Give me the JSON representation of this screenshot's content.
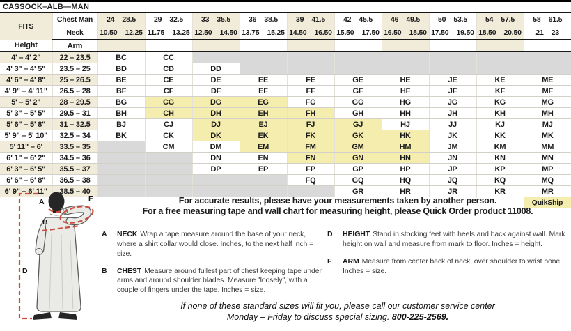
{
  "title": "CASSOCK–ALB—MAN",
  "colors": {
    "cream": "#f1ecd9",
    "quikship_yellow": "#f5edad",
    "empty_gray": "#d9d9d9",
    "measure_line_red": "#cb4b3c"
  },
  "table": {
    "fits_label": "FITS",
    "chest_label": "Chest Man",
    "neck_label": "Neck",
    "height_label": "Height",
    "arm_label": "Arm",
    "quikship_label": "QuikShip",
    "chest_ranges": [
      "24 – 28.5",
      "29 – 32.5",
      "33 – 35.5",
      "36 – 38.5",
      "39 – 41.5",
      "42 – 45.5",
      "46 – 49.5",
      "50 – 53.5",
      "54 – 57.5",
      "58 – 61.5"
    ],
    "neck_ranges": [
      "10.50 – 12.25",
      "11.75 – 13.25",
      "12.50 – 14.50",
      "13.75 – 15.25",
      "14.50 – 16.50",
      "15.50 – 17.50",
      "16.50 – 18.50",
      "17.50 – 19.50",
      "18.50 – 20.50",
      "21 – 23"
    ],
    "quikship_cells": [
      "CG",
      "DG",
      "EG",
      "CH",
      "DH",
      "EH",
      "FH",
      "DJ",
      "EJ",
      "FJ",
      "GJ",
      "DK",
      "EK",
      "FK",
      "GK",
      "HK",
      "EM",
      "FM",
      "GM",
      "HM",
      "FN",
      "GN",
      "HN"
    ],
    "rows": [
      {
        "height": "4' – 4' 2\"",
        "arm": "22 – 23.5",
        "cells": [
          "BC",
          "CC",
          "",
          "",
          "",
          "",
          "",
          "",
          "",
          ""
        ]
      },
      {
        "height": "4' 3\" – 4' 5\"",
        "arm": "23.5 – 25",
        "cells": [
          "BD",
          "CD",
          "DD",
          "",
          "",
          "",
          "",
          "",
          "",
          ""
        ]
      },
      {
        "height": "4' 6\" – 4' 8\"",
        "arm": "25 – 26.5",
        "cells": [
          "BE",
          "CE",
          "DE",
          "EE",
          "FE",
          "GE",
          "HE",
          "JE",
          "KE",
          "ME"
        ]
      },
      {
        "height": "4' 9\" – 4' 11\"",
        "arm": "26.5 – 28",
        "cells": [
          "BF",
          "CF",
          "DF",
          "EF",
          "FF",
          "GF",
          "HF",
          "JF",
          "KF",
          "MF"
        ]
      },
      {
        "height": "5' – 5' 2\"",
        "arm": "28 – 29.5",
        "cells": [
          "BG",
          "CG",
          "DG",
          "EG",
          "FG",
          "GG",
          "HG",
          "JG",
          "KG",
          "MG"
        ]
      },
      {
        "height": "5' 3\" – 5' 5\"",
        "arm": "29.5 – 31",
        "cells": [
          "BH",
          "CH",
          "DH",
          "EH",
          "FH",
          "GH",
          "HH",
          "JH",
          "KH",
          "MH"
        ]
      },
      {
        "height": "5' 6\" – 5' 8\"",
        "arm": "31 – 32.5",
        "cells": [
          "BJ",
          "CJ",
          "DJ",
          "EJ",
          "FJ",
          "GJ",
          "HJ",
          "JJ",
          "KJ",
          "MJ"
        ]
      },
      {
        "height": "5' 9\" – 5' 10\"",
        "arm": "32.5 – 34",
        "cells": [
          "BK",
          "CK",
          "DK",
          "EK",
          "FK",
          "GK",
          "HK",
          "JK",
          "KK",
          "MK"
        ]
      },
      {
        "height": "5' 11\" – 6'",
        "arm": "33.5 – 35",
        "cells": [
          "",
          "CM",
          "DM",
          "EM",
          "FM",
          "GM",
          "HM",
          "JM",
          "KM",
          "MM"
        ]
      },
      {
        "height": "6' 1\" – 6' 2\"",
        "arm": "34.5 – 36",
        "cells": [
          "",
          "",
          "DN",
          "EN",
          "FN",
          "GN",
          "HN",
          "JN",
          "KN",
          "MN"
        ]
      },
      {
        "height": "6' 3\" – 6' 5\"",
        "arm": "35.5 – 37",
        "cells": [
          "",
          "",
          "DP",
          "EP",
          "FP",
          "GP",
          "HP",
          "JP",
          "KP",
          "MP"
        ]
      },
      {
        "height": "6' 6\" – 6' 8\"",
        "arm": "36.5 – 38",
        "cells": [
          "",
          "",
          "",
          "",
          "FQ",
          "GQ",
          "HQ",
          "JQ",
          "KQ",
          "MQ"
        ]
      },
      {
        "height": "6' 9\" – 6' 11\"",
        "arm": "38.5 – 40",
        "cells": [
          "",
          "",
          "",
          "",
          "",
          "GR",
          "HR",
          "JR",
          "KR",
          "MR"
        ]
      }
    ]
  },
  "notes": {
    "line1": "For accurate results, please have your measurements taken by another person.",
    "line2": "For a free measuring tape and wall chart for measuring height, please Quick Order product 11008."
  },
  "instructions": [
    {
      "letter": "A",
      "term": "NECK",
      "text": "Wrap a tape measure around the base of your neck, where a shirt collar would close. Inches, to the next half inch = size."
    },
    {
      "letter": "B",
      "term": "CHEST",
      "text": "Measure around fullest part of chest keeping tape under arms and around shoulder blades. Measure \"loosely\", with a couple of fingers under the tape. Inches = size."
    },
    {
      "letter": "D",
      "term": "HEIGHT",
      "text": "Stand in stocking feet with heels and back against wall. Mark height on wall and measure from mark to floor. Inches = height."
    },
    {
      "letter": "F",
      "term": "ARM",
      "text": "Measure from center back of neck, over shoulder to wrist bone. Inches = size."
    }
  ],
  "footer": {
    "line1": "If none of these standard sizes will fit you, please call our customer service center",
    "line2_prefix": "Monday – Friday to discuss special sizing. ",
    "phone": "800-225-2569."
  },
  "figure": {
    "labels": {
      "a": "A",
      "b": "B",
      "d": "D",
      "f": "F"
    }
  }
}
